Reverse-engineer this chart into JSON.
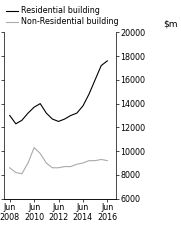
{
  "ylim": [
    6000,
    20000
  ],
  "yticks": [
    6000,
    8000,
    10000,
    12000,
    14000,
    16000,
    18000,
    20000
  ],
  "residential": {
    "x": [
      2008.5,
      2009.0,
      2009.5,
      2010.0,
      2010.5,
      2011.0,
      2011.5,
      2012.0,
      2012.5,
      2013.0,
      2013.5,
      2014.0,
      2014.5,
      2015.0,
      2015.5,
      2016.0,
      2016.5
    ],
    "y": [
      13000,
      12300,
      12600,
      13200,
      13700,
      14000,
      13200,
      12700,
      12500,
      12700,
      13000,
      13200,
      13800,
      14800,
      16000,
      17200,
      17600
    ],
    "color": "#000000",
    "label": "Residential building"
  },
  "non_residential": {
    "x": [
      2008.5,
      2009.0,
      2009.5,
      2010.0,
      2010.5,
      2011.0,
      2011.5,
      2012.0,
      2012.5,
      2013.0,
      2013.5,
      2014.0,
      2014.5,
      2015.0,
      2015.5,
      2016.0,
      2016.5
    ],
    "y": [
      8600,
      8200,
      8100,
      9000,
      10300,
      9800,
      9000,
      8600,
      8600,
      8700,
      8700,
      8900,
      9000,
      9200,
      9200,
      9300,
      9200
    ],
    "color": "#aaaaaa",
    "label": "Non-Residential building"
  },
  "xtick_positions": [
    2008.5,
    2010.5,
    2012.5,
    2014.5,
    2016.5
  ],
  "xtick_labels": [
    "Jun\n2008",
    "Jun\n2010",
    "Jun\n2012",
    "Jun\n2014",
    "Jun\n2016"
  ],
  "xlim": [
    2008.0,
    2017.2
  ],
  "legend_fontsize": 5.8,
  "tick_fontsize": 5.8,
  "ylabel_fontsize": 6.5
}
